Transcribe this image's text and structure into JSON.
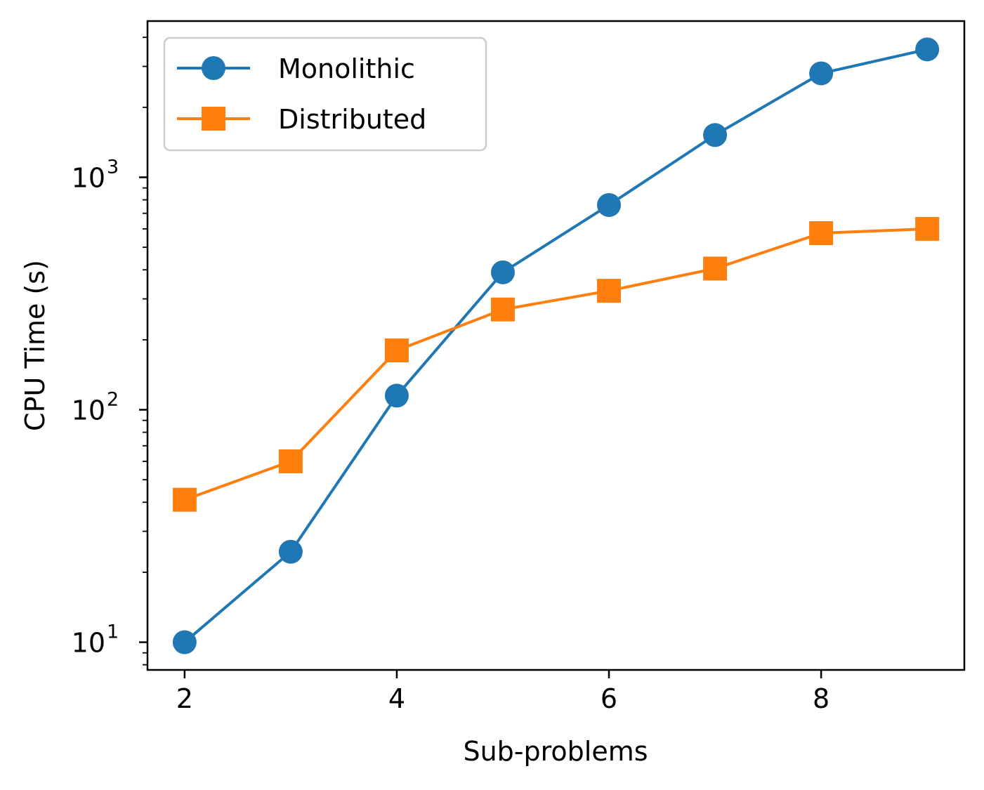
{
  "chart_data": {
    "type": "line",
    "title": "",
    "xlabel": "Sub-problems",
    "ylabel": "CPU Time (s)",
    "x": [
      2,
      3,
      4,
      5,
      6,
      7,
      8,
      9
    ],
    "xlim": [
      1.65,
      9.35
    ],
    "ylim": [
      7.6,
      4700
    ],
    "yscale": "log",
    "xticks": [
      2,
      4,
      6,
      8
    ],
    "yticks": [
      {
        "value": 10,
        "base": "10",
        "exp": "1"
      },
      {
        "value": 100,
        "base": "10",
        "exp": "2"
      },
      {
        "value": 1000,
        "base": "10",
        "exp": "3"
      }
    ],
    "grid": false,
    "legend_position": "top-left",
    "series": [
      {
        "name": "Monolithic",
        "color": "#1f77b4",
        "marker": "circle",
        "values": [
          10,
          24.5,
          115,
          390,
          760,
          1520,
          2800,
          3550
        ]
      },
      {
        "name": "Distributed",
        "color": "#ff7f0e",
        "marker": "square",
        "values": [
          41,
          60,
          180,
          270,
          325,
          405,
          575,
          600
        ]
      }
    ]
  }
}
